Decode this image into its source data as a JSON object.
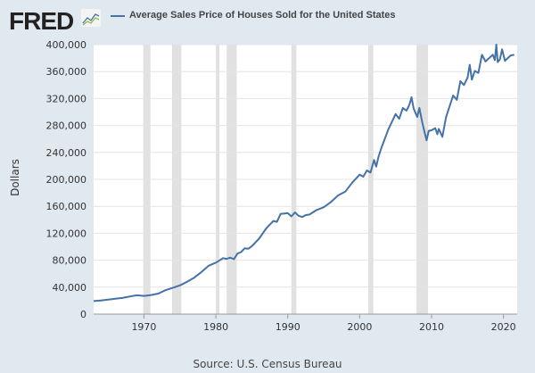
{
  "header": {
    "logo": "FRED",
    "legend": "Average Sales Price of Houses Sold for the United States"
  },
  "source": "Source: U.S. Census Bureau",
  "colors": {
    "line": "#4572a7",
    "recession": "#e1e1e1",
    "grid": "#e4e4e4"
  },
  "chart_data": {
    "type": "line",
    "title": "Average Sales Price of Houses Sold for the United States",
    "xlabel": "",
    "ylabel": "Dollars",
    "xlim": [
      1963,
      2021.9
    ],
    "ylim": [
      0,
      400000
    ],
    "yticks": [
      0,
      40000,
      80000,
      120000,
      160000,
      200000,
      240000,
      280000,
      320000,
      360000,
      400000
    ],
    "ytick_labels": [
      "0",
      "40,000",
      "80,000",
      "120,000",
      "160,000",
      "200,000",
      "240,000",
      "280,000",
      "320,000",
      "360,000",
      "400,000"
    ],
    "xticks": [
      1970,
      1980,
      1990,
      2000,
      2010,
      2020
    ],
    "xtick_labels": [
      "1970",
      "1980",
      "1990",
      "2000",
      "2010",
      "2020"
    ],
    "recessions": [
      [
        1969.9,
        1970.9
      ],
      [
        1973.9,
        1975.2
      ],
      [
        1980.0,
        1980.5
      ],
      [
        1981.5,
        1982.9
      ],
      [
        1990.5,
        1991.2
      ],
      [
        2001.2,
        2001.9
      ],
      [
        2007.9,
        2009.5
      ]
    ],
    "series": [
      {
        "name": "Average Sales Price of Houses Sold for the United States",
        "points": [
          [
            1963,
            19300
          ],
          [
            1964,
            20300
          ],
          [
            1965,
            21500
          ],
          [
            1966,
            22800
          ],
          [
            1967,
            24000
          ],
          [
            1968,
            26100
          ],
          [
            1969,
            27900
          ],
          [
            1970,
            27000
          ],
          [
            1971,
            28300
          ],
          [
            1972,
            30500
          ],
          [
            1973,
            35500
          ],
          [
            1974,
            38900
          ],
          [
            1975,
            42600
          ],
          [
            1976,
            48000
          ],
          [
            1977,
            54200
          ],
          [
            1978,
            62500
          ],
          [
            1979,
            71800
          ],
          [
            1980,
            76400
          ],
          [
            1981,
            83000
          ],
          [
            1981.5,
            82000
          ],
          [
            1982,
            83900
          ],
          [
            1982.5,
            81500
          ],
          [
            1983,
            89800
          ],
          [
            1983.5,
            92000
          ],
          [
            1984,
            97600
          ],
          [
            1984.5,
            97000
          ],
          [
            1985,
            100800
          ],
          [
            1986,
            111900
          ],
          [
            1987,
            127200
          ],
          [
            1988,
            138300
          ],
          [
            1988.5,
            137000
          ],
          [
            1989,
            148800
          ],
          [
            1990,
            149800
          ],
          [
            1990.5,
            145000
          ],
          [
            1991,
            151000
          ],
          [
            1991.5,
            146000
          ],
          [
            1992,
            144100
          ],
          [
            1992.5,
            147000
          ],
          [
            1993,
            147700
          ],
          [
            1994,
            154500
          ],
          [
            1995,
            158700
          ],
          [
            1996,
            166400
          ],
          [
            1997,
            176200
          ],
          [
            1998,
            181900
          ],
          [
            1999,
            195600
          ],
          [
            2000,
            207000
          ],
          [
            2000.5,
            204000
          ],
          [
            2001,
            213200
          ],
          [
            2001.5,
            210000
          ],
          [
            2002,
            228700
          ],
          [
            2002.3,
            219000
          ],
          [
            2002.6,
            233000
          ],
          [
            2003,
            246300
          ],
          [
            2004,
            274500
          ],
          [
            2005,
            297000
          ],
          [
            2005.5,
            290000
          ],
          [
            2006,
            305900
          ],
          [
            2006.5,
            302000
          ],
          [
            2006.8,
            308000
          ],
          [
            2007,
            313600
          ],
          [
            2007.2,
            322000
          ],
          [
            2007.5,
            305000
          ],
          [
            2008,
            292600
          ],
          [
            2008.3,
            306000
          ],
          [
            2008.7,
            285000
          ],
          [
            2009,
            270900
          ],
          [
            2009.3,
            258000
          ],
          [
            2009.6,
            272000
          ],
          [
            2010,
            272900
          ],
          [
            2010.5,
            276000
          ],
          [
            2010.8,
            267000
          ],
          [
            2011,
            275000
          ],
          [
            2011.5,
            263000
          ],
          [
            2012,
            292200
          ],
          [
            2013,
            324500
          ],
          [
            2013.5,
            318000
          ],
          [
            2014,
            345800
          ],
          [
            2014.5,
            340000
          ],
          [
            2015,
            351000
          ],
          [
            2015.3,
            370000
          ],
          [
            2015.6,
            348000
          ],
          [
            2016,
            360900
          ],
          [
            2016.5,
            358000
          ],
          [
            2017,
            384900
          ],
          [
            2017.5,
            375000
          ],
          [
            2018.5,
            385000
          ],
          [
            2018.8,
            377000
          ],
          [
            2019,
            400000
          ],
          [
            2019.2,
            374000
          ],
          [
            2019.5,
            378000
          ],
          [
            2019.8,
            393000
          ],
          [
            2020.2,
            376000
          ],
          [
            2020.6,
            380000
          ],
          [
            2021,
            384000
          ],
          [
            2021.5,
            385000
          ]
        ]
      }
    ]
  }
}
